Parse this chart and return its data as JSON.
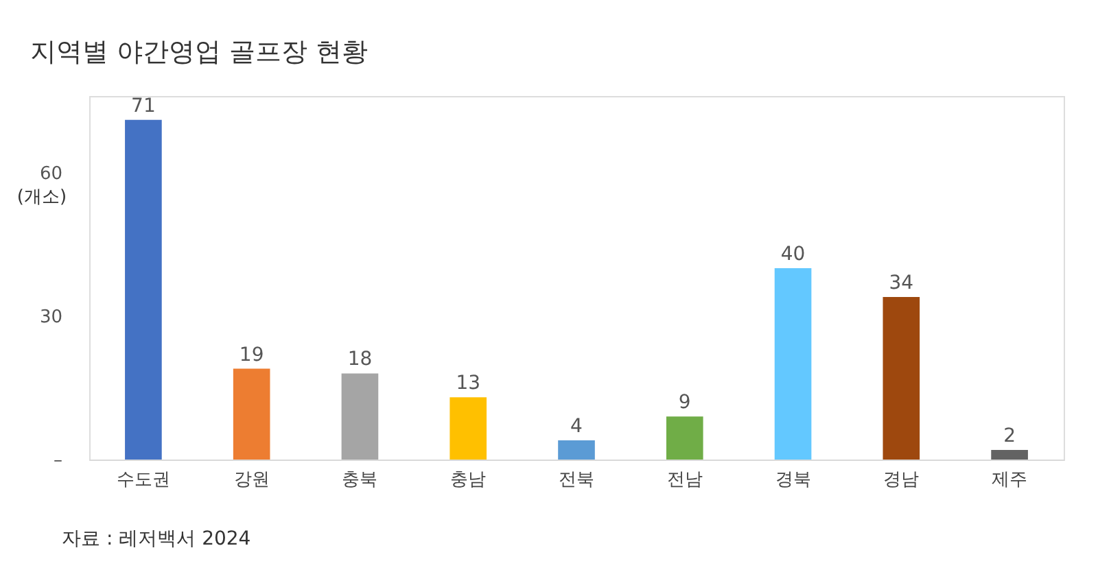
{
  "chart_data": {
    "type": "bar",
    "title": "지역별 야간영업 골프장 현황",
    "ylabel": "(개소)",
    "categories": [
      "수도권",
      "강원",
      "충북",
      "충남",
      "전북",
      "전남",
      "경북",
      "경남",
      "제주"
    ],
    "values": [
      71,
      19,
      18,
      13,
      4,
      9,
      40,
      34,
      2
    ],
    "colors": [
      "#4472c4",
      "#ed7d31",
      "#a5a5a5",
      "#ffc000",
      "#5b9bd5",
      "#70ad47",
      "#63c8ff",
      "#9e480e",
      "#636363"
    ],
    "ylim": [
      0,
      76
    ],
    "yticks": [
      {
        "value": 0,
        "label": "–"
      },
      30,
      60
    ],
    "data_labels": true,
    "grid": false,
    "annotations": [
      "자료 : 레저백서 2024"
    ]
  }
}
